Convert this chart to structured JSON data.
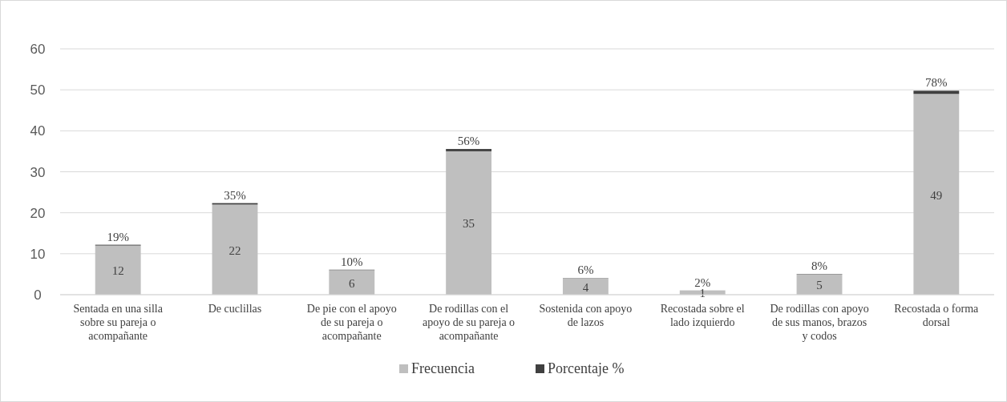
{
  "chart_data": {
    "type": "bar",
    "stacked": true,
    "categories": [
      "Sentada en una silla sobre su pareja o acompañante",
      "De cuclillas",
      "De pie con el apoyo de su pareja o acompañante",
      "De rodillas con el apoyo de su pareja o acompañante",
      "Sostenida con apoyo de lazos",
      "Recostada sobre el lado izquierdo",
      "De rodillas con apoyo de sus manos, brazos y codos",
      "Recostada o forma dorsal"
    ],
    "series": [
      {
        "name": "Frecuencia",
        "color": "#bfbfbf",
        "values": [
          12,
          22,
          6,
          35,
          4,
          1,
          5,
          49
        ],
        "value_labels": [
          "12",
          "22",
          "6",
          "35",
          "4",
          "1",
          "5",
          "49"
        ]
      },
      {
        "name": "Porcentaje %",
        "color": "#404040",
        "values": [
          0.19,
          0.35,
          0.1,
          0.56,
          0.06,
          0.02,
          0.08,
          0.78
        ],
        "value_labels": [
          "19%",
          "35%",
          "10%",
          "56%",
          "6%",
          "2%",
          "8%",
          "78%"
        ]
      }
    ],
    "ylim": [
      0,
      60
    ],
    "yticks": [
      0,
      10,
      20,
      30,
      40,
      50,
      60
    ],
    "grid": "y",
    "legend": "bottom"
  }
}
